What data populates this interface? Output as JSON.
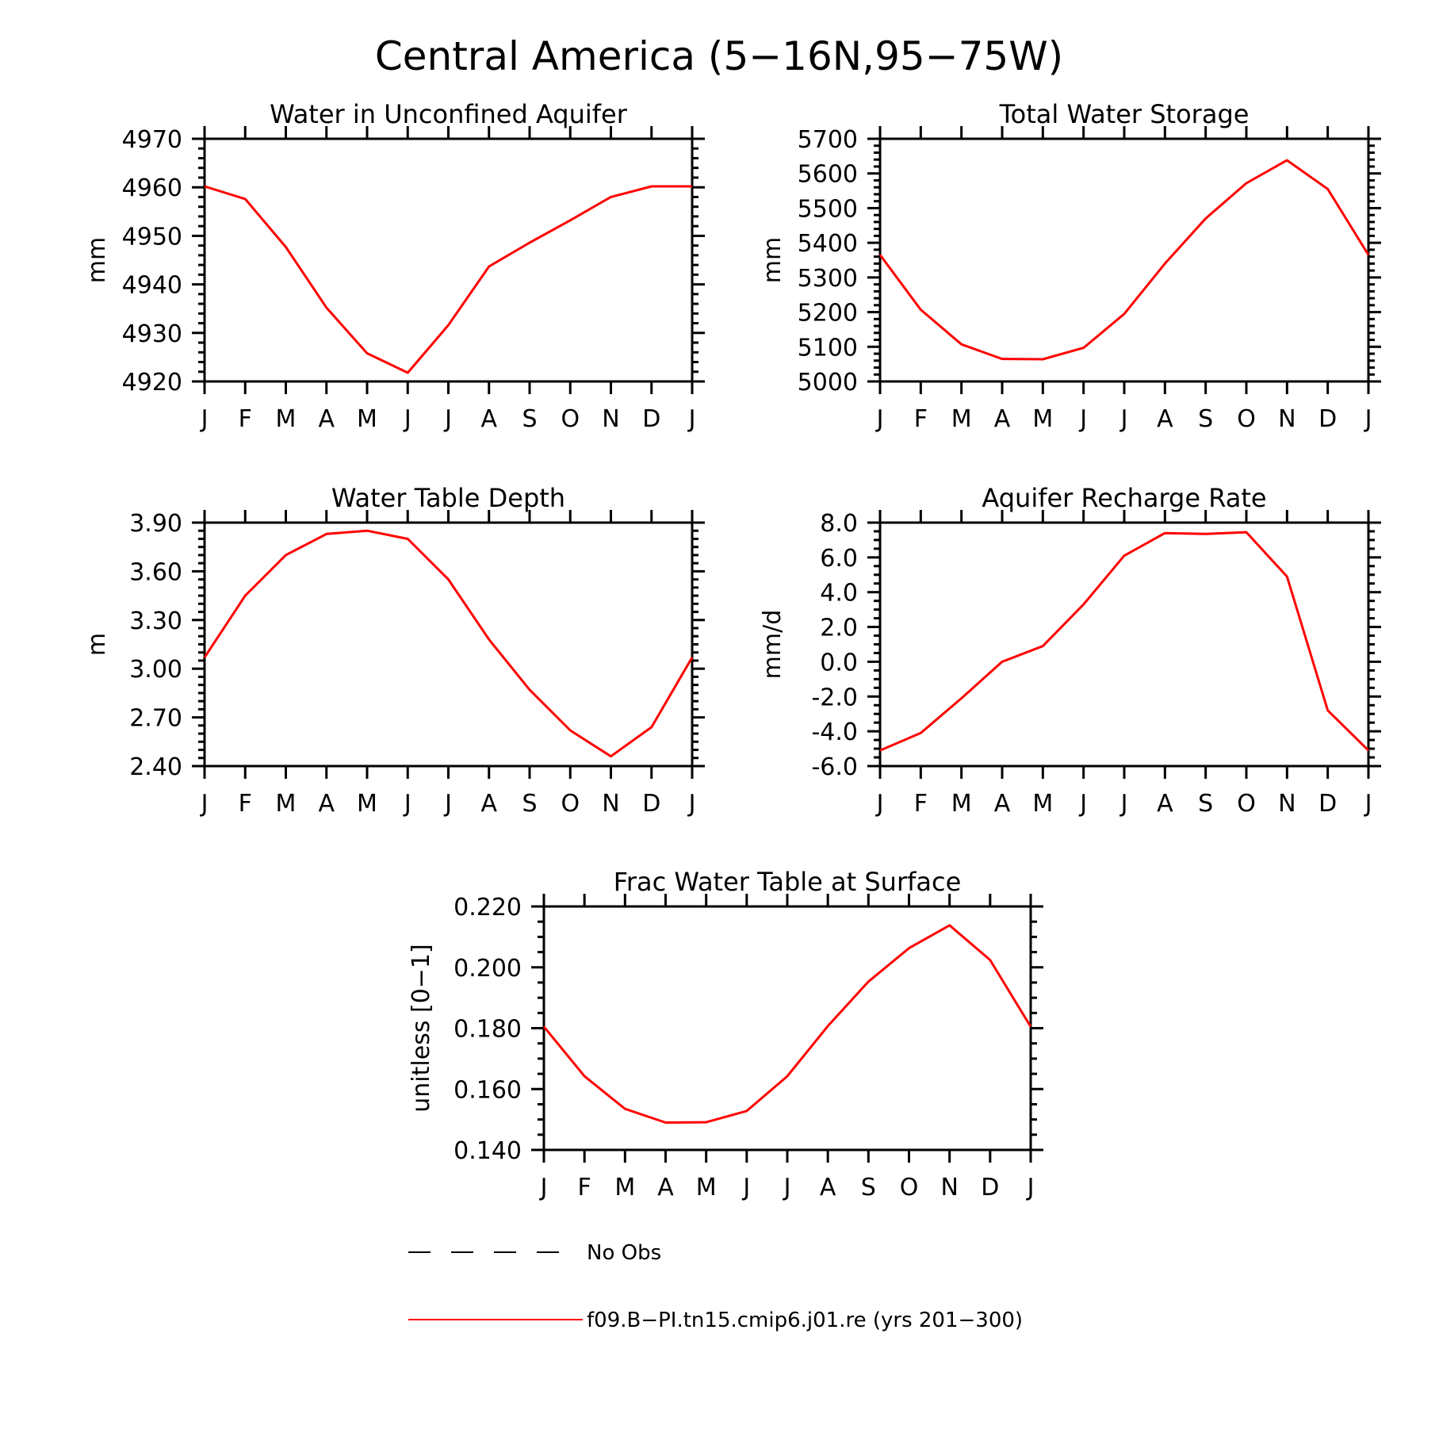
{
  "title": "Central America (5−16N,95−75W)",
  "colors": {
    "model": "#ff0000",
    "obs": "#000000",
    "axes": "#000000"
  },
  "legend": {
    "items": [
      {
        "label": "No Obs",
        "style": "dashed",
        "color": "#000000"
      },
      {
        "label": "f09.B−PI.tn15.cmip6.j01.re (yrs 201−300)",
        "style": "solid",
        "color": "#ff0000"
      }
    ]
  },
  "chart_data": [
    {
      "type": "line",
      "title": "Water in Unconfined Aquifer",
      "xlabel": "",
      "ylabel": "mm",
      "categories": [
        "J",
        "F",
        "M",
        "A",
        "M",
        "J",
        "J",
        "A",
        "S",
        "O",
        "N",
        "D",
        "J"
      ],
      "ylim": [
        4920,
        4970
      ],
      "yticks": [
        "4920",
        "4930",
        "4940",
        "4950",
        "4960",
        "4970"
      ],
      "yminor_count": 4,
      "series": [
        {
          "values": [
            4960.2,
            4957.6,
            4947.7,
            4935.2,
            4925.8,
            4921.8,
            4931.6,
            4943.7,
            4948.6,
            4953.2,
            4958.0,
            4960.2,
            4960.2
          ]
        }
      ]
    },
    {
      "type": "line",
      "title": "Total Water Storage",
      "xlabel": "",
      "ylabel": "mm",
      "categories": [
        "J",
        "F",
        "M",
        "A",
        "M",
        "J",
        "J",
        "A",
        "S",
        "O",
        "N",
        "D",
        "J"
      ],
      "ylim": [
        5000,
        5700
      ],
      "yticks": [
        "5000",
        "5100",
        "5200",
        "5300",
        "5400",
        "5500",
        "5600",
        "5700"
      ],
      "yminor_count": 4,
      "series": [
        {
          "values": [
            5365,
            5207,
            5107,
            5065,
            5064,
            5097,
            5195,
            5340,
            5470,
            5572,
            5638,
            5555,
            5365
          ]
        }
      ]
    },
    {
      "type": "line",
      "title": "Water Table Depth",
      "xlabel": "",
      "ylabel": "m",
      "categories": [
        "J",
        "F",
        "M",
        "A",
        "M",
        "J",
        "J",
        "A",
        "S",
        "O",
        "N",
        "D",
        "J"
      ],
      "ylim": [
        2.4,
        3.9
      ],
      "yticks": [
        "2.40",
        "2.70",
        "3.00",
        "3.30",
        "3.60",
        "3.90"
      ],
      "yminor_count": 5,
      "series": [
        {
          "values": [
            3.07,
            3.45,
            3.7,
            3.83,
            3.85,
            3.8,
            3.55,
            3.18,
            2.87,
            2.62,
            2.46,
            2.64,
            3.07
          ]
        }
      ]
    },
    {
      "type": "line",
      "title": "Aquifer Recharge Rate",
      "xlabel": "",
      "ylabel": "mm/d",
      "categories": [
        "J",
        "F",
        "M",
        "A",
        "M",
        "J",
        "J",
        "A",
        "S",
        "O",
        "N",
        "D",
        "J"
      ],
      "ylim": [
        -6.0,
        8.0
      ],
      "yticks": [
        "-6.0",
        "-4.0",
        "-2.0",
        "0.0",
        "2.0",
        "4.0",
        "6.0",
        "8.0"
      ],
      "yminor_count": 3,
      "series": [
        {
          "values": [
            -5.1,
            -4.1,
            -2.1,
            0.0,
            0.9,
            3.3,
            6.1,
            7.4,
            7.35,
            7.45,
            4.9,
            -2.8,
            -5.1
          ]
        }
      ]
    },
    {
      "type": "line",
      "title": "Frac Water Table at Surface",
      "xlabel": "",
      "ylabel": "unitless [0−1]",
      "categories": [
        "J",
        "F",
        "M",
        "A",
        "M",
        "J",
        "J",
        "A",
        "S",
        "O",
        "N",
        "D",
        "J"
      ],
      "ylim": [
        0.14,
        0.22
      ],
      "yticks": [
        "0.140",
        "0.160",
        "0.180",
        "0.200",
        "0.220"
      ],
      "yminor_count": 3,
      "series": [
        {
          "values": [
            0.1805,
            0.1642,
            0.1535,
            0.149,
            0.1491,
            0.1528,
            0.1642,
            0.1807,
            0.1953,
            0.2063,
            0.2138,
            0.2024,
            0.1805
          ]
        }
      ]
    }
  ]
}
